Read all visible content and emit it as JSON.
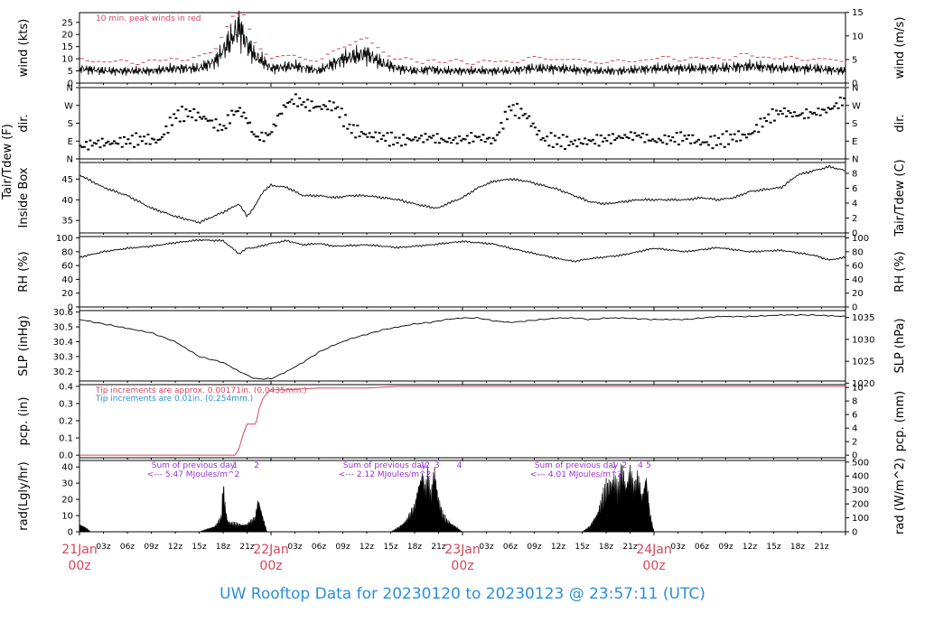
{
  "title": "UW Rooftop Data for 20230120  to  20230123 @ 23:57:11  (UTC)",
  "colors": {
    "red": "#d6455f",
    "blue": "#2a8fd6",
    "purple": "#9b2fd6",
    "axis": "#000000"
  },
  "chart_data": [
    {
      "id": "wind",
      "type": "line",
      "ylabel_left": "wind (kts)",
      "ylabel_right": "wind (m/s)",
      "ylim": [
        0,
        29
      ],
      "yticks": [
        0,
        5,
        10,
        15,
        20,
        25
      ],
      "right_ticks": [
        0,
        5,
        10,
        15
      ],
      "right_scale": 1.94,
      "annotations": [
        "10 min. peak winds in red"
      ],
      "series": [
        {
          "values_t": [
            0,
            3,
            6,
            9,
            12,
            15,
            17,
            19,
            20,
            21,
            22,
            23,
            24,
            27,
            30,
            33,
            36,
            38,
            40,
            42,
            43,
            44,
            45,
            46,
            48,
            50,
            52,
            54,
            56,
            60,
            64,
            68,
            72,
            76,
            80,
            84,
            88,
            92,
            96
          ],
          "values": [
            6,
            5,
            5,
            5,
            6,
            6,
            9,
            18,
            23,
            16,
            11,
            9,
            6,
            7,
            5,
            10,
            12,
            8,
            6,
            5,
            5,
            6,
            5,
            5,
            5,
            5,
            5,
            5,
            6,
            6,
            5,
            5,
            6,
            6,
            6,
            7,
            6,
            6,
            5
          ]
        }
      ]
    },
    {
      "id": "dir",
      "type": "scatter",
      "ylabel_left": "dir.",
      "ylabel_right": "dir.",
      "yticks": [
        "N",
        "E",
        "S",
        "W",
        "N"
      ],
      "x": [
        0,
        2,
        4,
        6,
        8,
        10,
        12,
        14,
        16,
        18,
        19,
        20,
        21,
        22,
        23,
        24,
        25,
        26,
        27,
        28,
        30,
        32,
        34,
        36,
        38,
        40,
        42,
        44,
        46,
        48,
        50,
        52,
        54,
        56,
        58,
        60,
        62,
        64,
        66,
        68,
        70,
        72,
        74,
        76,
        78,
        80,
        82,
        84,
        86,
        88,
        90,
        92,
        94,
        96
      ],
      "values_deg": [
        60,
        80,
        80,
        90,
        100,
        90,
        220,
        230,
        200,
        150,
        220,
        250,
        200,
        110,
        110,
        130,
        220,
        280,
        300,
        280,
        260,
        270,
        150,
        120,
        110,
        90,
        100,
        110,
        90,
        100,
        110,
        90,
        260,
        220,
        100,
        90,
        80,
        90,
        100,
        110,
        120,
        90,
        100,
        110,
        80,
        90,
        110,
        120,
        200,
        240,
        220,
        230,
        250,
        300
      ]
    },
    {
      "id": "temp",
      "type": "line",
      "ylabel_left": "Inside Box",
      "ylabel_outer": "Tair/Tdew (F)",
      "ylabel_right": "Tair/Tdew (C)",
      "ylim": [
        32,
        49
      ],
      "yticks": [
        35,
        40,
        45
      ],
      "right_ticks": [
        0,
        2,
        4,
        6,
        8
      ],
      "series": [
        {
          "x": [
            0,
            3,
            6,
            9,
            12,
            15,
            18,
            20,
            21,
            22,
            23,
            24,
            26,
            28,
            30,
            32,
            34,
            36,
            38,
            40,
            42,
            44,
            45,
            46,
            48,
            50,
            52,
            54,
            56,
            58,
            60,
            62,
            64,
            66,
            68,
            70,
            72,
            74,
            76,
            78,
            80,
            82,
            84,
            86,
            88,
            90,
            92,
            94,
            96
          ],
          "values": [
            46,
            43,
            41,
            38,
            36,
            34.5,
            37,
            39,
            36,
            38.5,
            42,
            43.5,
            43,
            41,
            41,
            40.5,
            41,
            41,
            40.5,
            40,
            39,
            38.2,
            38,
            39,
            40.5,
            43,
            44.5,
            45,
            44.5,
            43.5,
            42.5,
            41,
            39.5,
            39,
            39.5,
            40,
            40,
            40,
            40,
            40.5,
            40,
            40.5,
            42,
            42.5,
            43,
            46,
            47,
            48,
            47
          ]
        }
      ]
    },
    {
      "id": "rh",
      "type": "line",
      "ylabel_left": "RH (%)",
      "ylabel_right": "RH (%)",
      "ylim": [
        0,
        102
      ],
      "yticks": [
        0,
        20,
        40,
        60,
        80,
        100
      ],
      "right_ticks": [
        0,
        20,
        40,
        60,
        80,
        100
      ],
      "series": [
        {
          "x": [
            0,
            3,
            6,
            9,
            12,
            15,
            18,
            20,
            21,
            22,
            24,
            26,
            28,
            30,
            32,
            36,
            40,
            44,
            48,
            50,
            52,
            54,
            56,
            58,
            60,
            62,
            64,
            68,
            72,
            76,
            80,
            84,
            88,
            92,
            94,
            96
          ],
          "values": [
            72,
            80,
            85,
            88,
            93,
            97,
            96,
            77,
            85,
            86,
            92,
            96,
            90,
            92,
            88,
            90,
            86,
            90,
            95,
            93,
            91,
            85,
            80,
            75,
            70,
            66,
            70,
            75,
            85,
            80,
            86,
            80,
            82,
            75,
            68,
            72
          ]
        }
      ]
    },
    {
      "id": "slp",
      "type": "line",
      "ylabel_left": "SLP (inHg)",
      "ylabel_right": "SLP (hPa)",
      "ylim": [
        30.135,
        30.61
      ],
      "yticks": [
        30.2,
        30.3,
        30.4,
        30.5,
        30.6
      ],
      "right_ticks": [
        1020,
        1025,
        1030,
        1035
      ],
      "right_scale": 33.8639,
      "series": [
        {
          "x": [
            0,
            3,
            6,
            9,
            12,
            15,
            18,
            20,
            22,
            24,
            26,
            28,
            30,
            32,
            34,
            36,
            38,
            40,
            42,
            44,
            46,
            48,
            50,
            52,
            54,
            56,
            58,
            60,
            62,
            64,
            66,
            68,
            72,
            76,
            80,
            84,
            88,
            92,
            96
          ],
          "values": [
            30.55,
            30.52,
            30.49,
            30.46,
            30.4,
            30.3,
            30.26,
            30.2,
            30.15,
            30.15,
            30.2,
            30.26,
            30.33,
            30.38,
            30.42,
            30.45,
            30.48,
            30.5,
            30.52,
            30.53,
            30.55,
            30.56,
            30.56,
            30.54,
            30.53,
            30.54,
            30.55,
            30.56,
            30.56,
            30.55,
            30.56,
            30.56,
            30.55,
            30.55,
            30.57,
            30.57,
            30.58,
            30.58,
            30.57
          ]
        }
      ]
    },
    {
      "id": "pcp",
      "type": "line",
      "ylabel_left": "pcp. (in)",
      "ylabel_right": "pcp. (mm)",
      "ylim": [
        -0.015,
        0.41
      ],
      "yticks": [
        0.0,
        0.1,
        0.2,
        0.3,
        0.4
      ],
      "right_ticks": [
        0,
        2,
        4,
        6,
        8,
        10
      ],
      "right_scale": 25.4,
      "annotations": [
        "Tip increments are approx. 0.00171in. (0.0435mm.)",
        "Tip increments are 0.01in. (0.254mm.)"
      ],
      "series": [
        {
          "x": [
            0,
            19.5,
            20,
            20.5,
            21,
            21.5,
            22,
            22.2,
            22.5,
            23,
            23.5,
            24,
            26,
            30,
            36,
            40,
            48,
            56,
            72,
            80,
            88,
            96
          ],
          "values": [
            0,
            0,
            0.04,
            0.12,
            0.18,
            0.18,
            0.18,
            0.2,
            0.27,
            0.33,
            0.36,
            0.38,
            0.38,
            0.39,
            0.39,
            0.4,
            0.4,
            0.4,
            0.4,
            0.4,
            0.4,
            0.4
          ]
        }
      ]
    },
    {
      "id": "rad",
      "type": "area",
      "ylabel_left": "rad(Lgly/hr)",
      "ylabel_right": "rad (W/m^2)",
      "ylim": [
        0,
        44
      ],
      "yticks": [
        0,
        10,
        20,
        30,
        40
      ],
      "right_ticks": [
        0,
        100,
        200,
        300,
        400,
        500
      ],
      "right_scale": 11.63,
      "annotations": [
        {
          "l1": "Sum of previous day",
          "l2": "<--- 5.47 MJoules/m^2",
          "at": 12
        },
        {
          "l1": "Sum of previous day",
          "l2": "<--- 2.12 MJoules/m^2",
          "at": 36
        },
        {
          "l1": "Sum of previous day",
          "l2": "<--- 4.01 MJoules/m^2",
          "at": 60
        }
      ],
      "markers": [
        {
          "label": "1",
          "x": 19.5
        },
        {
          "label": "2",
          "x": 22.2
        },
        {
          "label": "1",
          "x": 43
        },
        {
          "label": "2",
          "x": 43.6
        },
        {
          "label": "3",
          "x": 44.8
        },
        {
          "label": "4",
          "x": 47.6
        },
        {
          "label": "1",
          "x": 67
        },
        {
          "label": "2",
          "x": 68.3
        },
        {
          "label": "4",
          "x": 70.3
        },
        {
          "label": "5",
          "x": 71.3
        }
      ],
      "series": [
        {
          "x": [
            0,
            0.5,
            1,
            1.4,
            15,
            16,
            17,
            17.8,
            18,
            18.3,
            18.6,
            19,
            20,
            21,
            22,
            22.4,
            23,
            23.5,
            39,
            40,
            41,
            42,
            42.5,
            43,
            43.3,
            43.7,
            44,
            44.5,
            45,
            45.5,
            46,
            47,
            48,
            63,
            64,
            65,
            66,
            67,
            67.5,
            68,
            68.5,
            69,
            69.5,
            70,
            70.5,
            71,
            71.5,
            72
          ],
          "values": [
            5,
            4,
            2,
            0,
            0,
            2,
            4,
            10,
            34,
            15,
            7,
            6,
            5,
            5,
            10,
            24,
            10,
            0,
            0,
            3,
            8,
            18,
            34,
            42,
            30,
            40,
            25,
            43,
            22,
            12,
            8,
            4,
            0,
            0,
            4,
            14,
            30,
            36,
            28,
            44,
            32,
            44,
            30,
            40,
            24,
            40,
            12,
            0
          ]
        }
      ]
    },
    {
      "id": "xaxis",
      "hour_ticks": [
        "03z",
        "06z",
        "09z",
        "12z",
        "15z",
        "18z",
        "21z"
      ],
      "day_ticks": [
        {
          "date": "21Jan",
          "time": "00z"
        },
        {
          "date": "22Jan",
          "time": "00z"
        },
        {
          "date": "23Jan",
          "time": "00z"
        },
        {
          "date": "24Jan",
          "time": "00z"
        }
      ]
    }
  ]
}
